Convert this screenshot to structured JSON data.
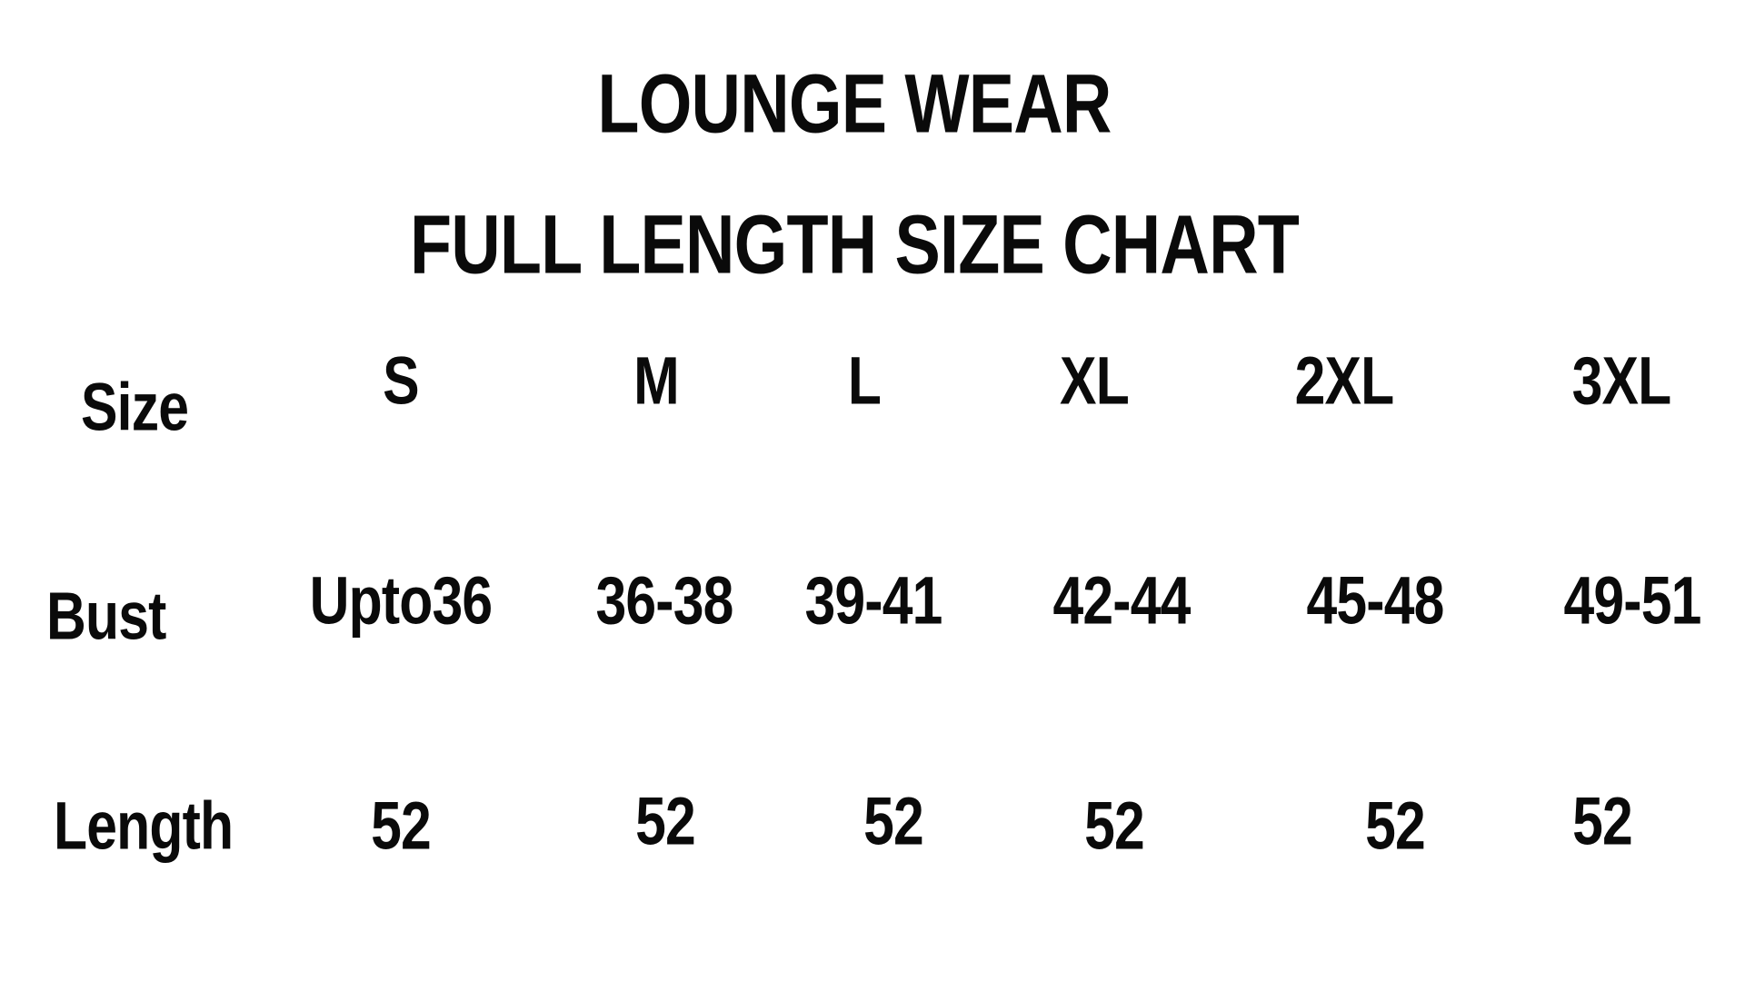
{
  "title": "LOUNGE WEAR",
  "subtitle": "FULL LENGTH SIZE CHART",
  "table": {
    "row_labels": [
      "Size",
      "Bust",
      "Length"
    ],
    "sizes": [
      "S",
      "M",
      "L",
      "XL",
      "2XL",
      "3XL"
    ],
    "bust": [
      "Upto36",
      "36-38",
      "39-41",
      "42-44",
      "45-48",
      "49-51"
    ],
    "length": [
      "52",
      "52",
      "52",
      "52",
      "52",
      "52"
    ]
  }
}
